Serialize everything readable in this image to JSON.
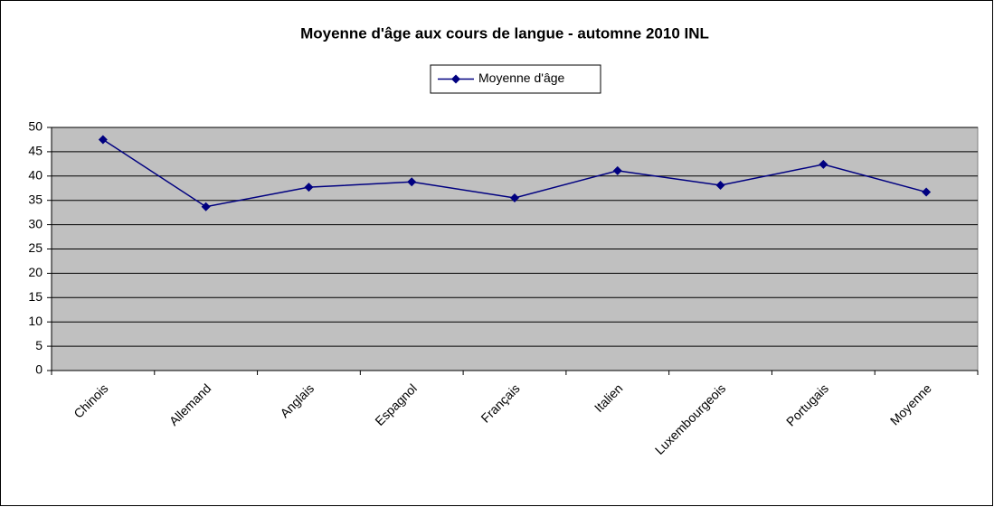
{
  "chart_data": {
    "type": "line",
    "title": "Moyenne d'âge aux cours de langue - automne 2010 INL",
    "categories": [
      "Chinois",
      "Allemand",
      "Anglais",
      "Espagnol",
      "Français",
      "Italien",
      "Luxembourgeois",
      "Portugais",
      "Moyenne"
    ],
    "series": [
      {
        "name": "Moyenne d'âge",
        "color": "#000080",
        "values": [
          47.5,
          33.7,
          37.7,
          38.8,
          35.5,
          41.1,
          38.1,
          42.4,
          36.7
        ]
      }
    ],
    "ylim": [
      0,
      50
    ],
    "yticks": [
      0,
      5,
      10,
      15,
      20,
      25,
      30,
      35,
      40,
      45,
      50
    ],
    "grid": true,
    "legend": "top",
    "plot_background": "#c0c0c0"
  }
}
